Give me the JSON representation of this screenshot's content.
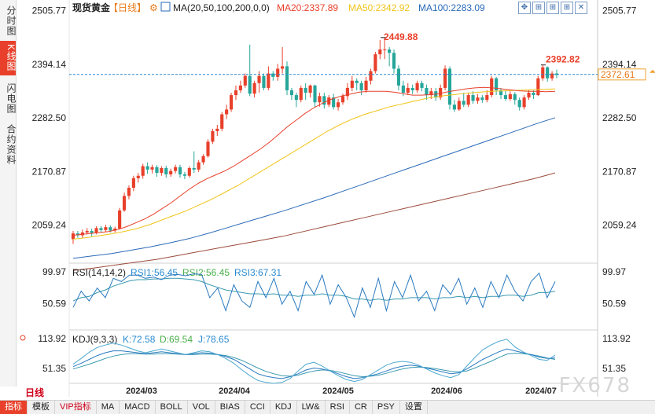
{
  "app": {
    "side_tabs": [
      "分时图",
      "K线图",
      "闪电图",
      "合约资料"
    ],
    "active_side_tab": 1,
    "period_label": "日线",
    "bottom_tabs": [
      "指标",
      "模板",
      "VIP指标",
      "MA",
      "MACD",
      "BOLL",
      "VOL",
      "BIAS",
      "CCI",
      "KDJ",
      "LW&",
      "RSI",
      "CR",
      "PSY",
      "设置"
    ],
    "active_bottom_tab": 0,
    "toolbar_buttons": [
      "✥",
      "⊞",
      "⊞",
      "⊞",
      "✕"
    ],
    "watermark": "FX678"
  },
  "chart_data": {
    "type": "candlestick",
    "title": "现货黄金",
    "period": "【日线】",
    "ma_indicator": "MA(20,50,100,200,0,0)",
    "legend": {
      "ma20": {
        "label": "MA20:2337.89",
        "color": "#e8402a"
      },
      "ma50": {
        "label": "MA50:2342.92",
        "color": "#f0c419"
      },
      "ma100": {
        "label": "MA100:2283.09",
        "color": "#2a6ab8"
      },
      "ma200": {
        "color": "#9b4a3a"
      }
    },
    "y_ticks": [
      2505.77,
      2394.14,
      2282.5,
      2170.87,
      2059.24
    ],
    "ylim": [
      1980,
      2515
    ],
    "x_ticks": [
      "2024/03",
      "2024/04",
      "2024/05",
      "2024/06",
      "2024/07"
    ],
    "annotations": {
      "high": "2449.88",
      "recent_high": "2392.82",
      "last_price": "2372.61"
    },
    "current_line": 2373,
    "colors": {
      "up": "#e8402a",
      "down": "#26a69a"
    },
    "candles": [
      [
        2030,
        2042,
        2020,
        2047
      ],
      [
        2042,
        2038,
        2033,
        2047
      ],
      [
        2038,
        2044,
        2032,
        2050
      ],
      [
        2044,
        2047,
        2040,
        2053
      ],
      [
        2047,
        2043,
        2036,
        2052
      ],
      [
        2043,
        2053,
        2040,
        2057
      ],
      [
        2053,
        2049,
        2043,
        2057
      ],
      [
        2049,
        2055,
        2045,
        2060
      ],
      [
        2055,
        2048,
        2044,
        2059
      ],
      [
        2048,
        2052,
        2044,
        2056
      ],
      [
        2052,
        2090,
        2050,
        2095
      ],
      [
        2090,
        2120,
        2087,
        2127
      ],
      [
        2120,
        2137,
        2113,
        2142
      ],
      [
        2137,
        2157,
        2130,
        2162
      ],
      [
        2157,
        2162,
        2148,
        2168
      ],
      [
        2162,
        2182,
        2156,
        2187
      ],
      [
        2182,
        2175,
        2166,
        2190
      ],
      [
        2175,
        2180,
        2167,
        2185
      ],
      [
        2180,
        2168,
        2160,
        2184
      ],
      [
        2168,
        2178,
        2162,
        2182
      ],
      [
        2178,
        2165,
        2158,
        2183
      ],
      [
        2165,
        2172,
        2160,
        2177
      ],
      [
        2172,
        2180,
        2167,
        2185
      ],
      [
        2180,
        2165,
        2158,
        2185
      ],
      [
        2165,
        2162,
        2155,
        2170
      ],
      [
        2162,
        2178,
        2158,
        2182
      ],
      [
        2178,
        2175,
        2168,
        2213
      ],
      [
        2175,
        2190,
        2170,
        2195
      ],
      [
        2190,
        2203,
        2185,
        2207
      ],
      [
        2203,
        2233,
        2200,
        2238
      ],
      [
        2233,
        2255,
        2228,
        2260
      ],
      [
        2255,
        2260,
        2245,
        2268
      ],
      [
        2260,
        2290,
        2255,
        2295
      ],
      [
        2290,
        2300,
        2280,
        2310
      ],
      [
        2300,
        2330,
        2295,
        2335
      ],
      [
        2330,
        2340,
        2320,
        2350
      ],
      [
        2340,
        2350,
        2335,
        2360
      ],
      [
        2350,
        2370,
        2345,
        2375
      ],
      [
        2370,
        2333,
        2328,
        2435
      ],
      [
        2333,
        2355,
        2325,
        2360
      ],
      [
        2355,
        2370,
        2335,
        2380
      ],
      [
        2370,
        2345,
        2340,
        2375
      ],
      [
        2345,
        2375,
        2340,
        2390
      ],
      [
        2375,
        2368,
        2360,
        2380
      ],
      [
        2368,
        2385,
        2360,
        2395
      ],
      [
        2385,
        2390,
        2375,
        2430
      ],
      [
        2390,
        2340,
        2330,
        2400
      ],
      [
        2340,
        2330,
        2320,
        2345
      ],
      [
        2330,
        2320,
        2305,
        2335
      ],
      [
        2320,
        2345,
        2315,
        2350
      ],
      [
        2345,
        2335,
        2320,
        2355
      ],
      [
        2335,
        2350,
        2325,
        2352
      ],
      [
        2350,
        2315,
        2305,
        2352
      ],
      [
        2315,
        2328,
        2306,
        2335
      ],
      [
        2328,
        2310,
        2302,
        2335
      ],
      [
        2310,
        2325,
        2305,
        2330
      ],
      [
        2325,
        2305,
        2300,
        2333
      ],
      [
        2305,
        2315,
        2298,
        2322
      ],
      [
        2315,
        2328,
        2310,
        2333
      ],
      [
        2328,
        2345,
        2320,
        2355
      ],
      [
        2345,
        2360,
        2338,
        2370
      ],
      [
        2360,
        2355,
        2340,
        2365
      ],
      [
        2355,
        2340,
        2330,
        2360
      ],
      [
        2340,
        2360,
        2335,
        2368
      ],
      [
        2360,
        2380,
        2352,
        2385
      ],
      [
        2380,
        2415,
        2375,
        2420
      ],
      [
        2415,
        2425,
        2405,
        2445
      ],
      [
        2425,
        2425,
        2405,
        2450
      ],
      [
        2425,
        2418,
        2390,
        2430
      ],
      [
        2418,
        2385,
        2375,
        2425
      ],
      [
        2385,
        2350,
        2340,
        2392
      ],
      [
        2350,
        2335,
        2328,
        2360
      ],
      [
        2335,
        2345,
        2330,
        2355
      ],
      [
        2345,
        2340,
        2332,
        2352
      ],
      [
        2340,
        2355,
        2335,
        2360
      ],
      [
        2355,
        2345,
        2338,
        2360
      ],
      [
        2345,
        2330,
        2320,
        2352
      ],
      [
        2330,
        2338,
        2322,
        2345
      ],
      [
        2338,
        2325,
        2318,
        2345
      ],
      [
        2325,
        2345,
        2320,
        2352
      ],
      [
        2345,
        2385,
        2340,
        2392
      ],
      [
        2385,
        2310,
        2300,
        2390
      ],
      [
        2310,
        2300,
        2295,
        2320
      ],
      [
        2300,
        2318,
        2297,
        2325
      ],
      [
        2318,
        2310,
        2305,
        2335
      ],
      [
        2310,
        2330,
        2305,
        2335
      ],
      [
        2330,
        2318,
        2312,
        2338
      ],
      [
        2318,
        2325,
        2312,
        2332
      ],
      [
        2325,
        2320,
        2314,
        2330
      ],
      [
        2320,
        2330,
        2315,
        2340
      ],
      [
        2330,
        2365,
        2325,
        2370
      ],
      [
        2365,
        2340,
        2330,
        2368
      ],
      [
        2340,
        2330,
        2322,
        2345
      ],
      [
        2330,
        2322,
        2318,
        2340
      ],
      [
        2322,
        2332,
        2318,
        2338
      ],
      [
        2332,
        2320,
        2310,
        2336
      ],
      [
        2320,
        2305,
        2298,
        2325
      ],
      [
        2305,
        2325,
        2300,
        2330
      ],
      [
        2325,
        2335,
        2320,
        2340
      ],
      [
        2335,
        2330,
        2322,
        2340
      ],
      [
        2330,
        2365,
        2328,
        2370
      ],
      [
        2365,
        2388,
        2360,
        2393
      ],
      [
        2388,
        2365,
        2358,
        2390
      ],
      [
        2365,
        2375,
        2360,
        2380
      ],
      [
        2375,
        2372,
        2365,
        2383
      ]
    ],
    "ma20": [
      2038,
      2040,
      2042,
      2044,
      2046,
      2050,
      2056,
      2064,
      2072,
      2082,
      2094,
      2106,
      2120,
      2134,
      2146,
      2156,
      2164,
      2172,
      2182,
      2194,
      2206,
      2218,
      2232,
      2248,
      2264,
      2278,
      2292,
      2304,
      2314,
      2322,
      2328,
      2332,
      2336,
      2338,
      2338,
      2338,
      2336,
      2333,
      2330,
      2330,
      2331,
      2333,
      2337,
      2340,
      2343,
      2345,
      2346,
      2345,
      2343,
      2341,
      2339,
      2338,
      2338,
      2337,
      2338
    ],
    "ma50": [
      2030,
      2033,
      2037,
      2041,
      2046,
      2052,
      2060,
      2070,
      2080,
      2090,
      2102,
      2114,
      2128,
      2142,
      2158,
      2174,
      2190,
      2206,
      2222,
      2238,
      2254,
      2268,
      2280,
      2290,
      2298,
      2306,
      2312,
      2318,
      2324,
      2328,
      2331,
      2334,
      2336,
      2338,
      2339,
      2340,
      2341,
      2342,
      2343
    ],
    "ma100": [
      1990,
      1995,
      2000,
      2007,
      2014,
      2022,
      2031,
      2042,
      2054,
      2066,
      2078,
      2090,
      2103,
      2116,
      2130,
      2144,
      2158,
      2172,
      2186,
      2200,
      2214,
      2228,
      2242,
      2256,
      2270,
      2283
    ],
    "ma200": [
      1965,
      1970,
      1976,
      1982,
      1988,
      1996,
      2004,
      2012,
      2020,
      2028,
      2036,
      2046,
      2056,
      2066,
      2076,
      2086,
      2096,
      2106,
      2116,
      2126,
      2136,
      2146,
      2156,
      2168
    ],
    "rsi": {
      "label": "RSI(14,14,2)",
      "rsi1_label": "RSI1:56.45",
      "rsi2_label": "RSI2:56.45",
      "rsi3_label": "RSI3:67.31",
      "ticks": [
        99.97,
        50.59
      ],
      "ylim": [
        10,
        105
      ],
      "fast": [
        45,
        70,
        55,
        75,
        60,
        90,
        85,
        95,
        95,
        90,
        92,
        88,
        95,
        96,
        94,
        97,
        96,
        60,
        75,
        40,
        80,
        55,
        45,
        85,
        60,
        90,
        50,
        70,
        40,
        85,
        65,
        95,
        50,
        80,
        60,
        30,
        75,
        45,
        90,
        40,
        85,
        60,
        95,
        55,
        70,
        40,
        80,
        65,
        90,
        50,
        75,
        45,
        85,
        60,
        95,
        70,
        55,
        85,
        98,
        60,
        85
      ],
      "slow": [
        55,
        60,
        62,
        68,
        72,
        78,
        82,
        86,
        88,
        88,
        89,
        89,
        90,
        90,
        89,
        88,
        85,
        80,
        76,
        72,
        70,
        68,
        66,
        66,
        65,
        66,
        64,
        64,
        62,
        64,
        64,
        66,
        64,
        64,
        62,
        58,
        58,
        56,
        58,
        56,
        58,
        58,
        60,
        60,
        60,
        58,
        60,
        60,
        62,
        60,
        62,
        60,
        62,
        62,
        64,
        64,
        62,
        64,
        68,
        68,
        70
      ]
    },
    "kdj": {
      "label": "KDJ(9,3,3)",
      "k_label": "K:72.58",
      "d_label": "D:69.54",
      "j_label": "J:78.65",
      "ticks": [
        113.92,
        51.35
      ],
      "ylim": [
        20,
        125
      ],
      "k": [
        55,
        62,
        70,
        78,
        84,
        88,
        88,
        86,
        84,
        82,
        84,
        86,
        84,
        82,
        80,
        82,
        84,
        83,
        80,
        76,
        70,
        60,
        50,
        40,
        35,
        32,
        30,
        34,
        40,
        48,
        52,
        50,
        46,
        40,
        34,
        30,
        32,
        36,
        40,
        46,
        52,
        56,
        58,
        56,
        52,
        48,
        44,
        40,
        42,
        50,
        60,
        70,
        78,
        86,
        92,
        88,
        84,
        80,
        75,
        72,
        73
      ],
      "d": [
        50,
        55,
        60,
        66,
        72,
        77,
        80,
        82,
        82,
        81,
        81,
        82,
        82,
        81,
        80,
        80,
        81,
        81,
        80,
        78,
        74,
        68,
        60,
        52,
        45,
        40,
        36,
        35,
        37,
        42,
        46,
        48,
        47,
        44,
        40,
        36,
        34,
        35,
        37,
        41,
        46,
        50,
        53,
        54,
        53,
        51,
        48,
        45,
        44,
        46,
        52,
        59,
        66,
        74,
        81,
        83,
        82,
        80,
        77,
        73,
        70
      ],
      "j": [
        60,
        72,
        85,
        95,
        100,
        104,
        100,
        94,
        88,
        84,
        88,
        92,
        88,
        84,
        80,
        84,
        88,
        86,
        80,
        72,
        62,
        48,
        36,
        26,
        22,
        20,
        22,
        30,
        46,
        60,
        64,
        56,
        46,
        36,
        28,
        24,
        28,
        38,
        48,
        58,
        64,
        66,
        64,
        58,
        50,
        42,
        36,
        32,
        38,
        56,
        74,
        90,
        100,
        108,
        112,
        96,
        86,
        78,
        70,
        68,
        79
      ]
    }
  }
}
